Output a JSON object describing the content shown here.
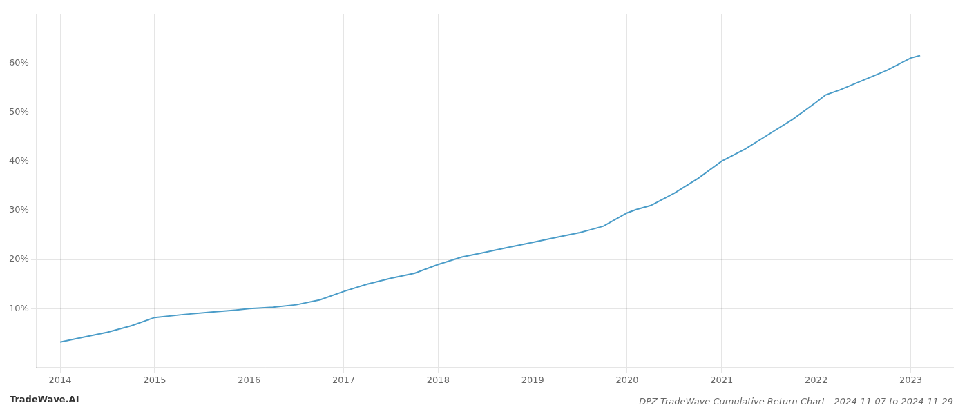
{
  "chart_data": {
    "type": "line",
    "title": "DPZ TradeWave Cumulative Return Chart - 2024-11-07 to 2024-11-29",
    "annotations": [
      "TradeWave.AI"
    ],
    "x": [
      2014.0,
      2014.2,
      2014.5,
      2014.75,
      2015.0,
      2015.3,
      2015.6,
      2015.85,
      2016.0,
      2016.1,
      2016.25,
      2016.5,
      2016.75,
      2017.0,
      2017.25,
      2017.5,
      2017.75,
      2018.0,
      2018.25,
      2018.5,
      2018.75,
      2019.0,
      2019.25,
      2019.5,
      2019.6,
      2019.75,
      2020.0,
      2020.1,
      2020.25,
      2020.5,
      2020.75,
      2021.0,
      2021.25,
      2021.5,
      2021.75,
      2022.0,
      2022.1,
      2022.25,
      2022.5,
      2022.75,
      2023.0,
      2023.1
    ],
    "values": [
      3.2,
      4.0,
      5.2,
      6.5,
      8.2,
      8.8,
      9.3,
      9.7,
      10.0,
      10.1,
      10.3,
      10.8,
      11.8,
      13.5,
      15.0,
      16.2,
      17.2,
      19.0,
      20.5,
      21.5,
      22.5,
      23.5,
      24.5,
      25.5,
      26.0,
      26.8,
      29.5,
      30.2,
      31.0,
      33.5,
      36.5,
      40.0,
      42.5,
      45.5,
      48.5,
      52.0,
      53.5,
      54.5,
      56.5,
      58.5,
      61.0,
      61.5
    ],
    "color": "#4a9cc8",
    "xlim": [
      2013.75,
      2023.45
    ],
    "ylim": [
      -2,
      70
    ],
    "xticks": [
      2014,
      2015,
      2016,
      2017,
      2018,
      2019,
      2020,
      2021,
      2022,
      2023
    ],
    "yticks": [
      {
        "value": 10,
        "label": "10%"
      },
      {
        "value": 20,
        "label": "20%"
      },
      {
        "value": 30,
        "label": "30%"
      },
      {
        "value": 40,
        "label": "40%"
      },
      {
        "value": 50,
        "label": "50%"
      },
      {
        "value": 60,
        "label": "60%"
      }
    ],
    "grid": true
  }
}
